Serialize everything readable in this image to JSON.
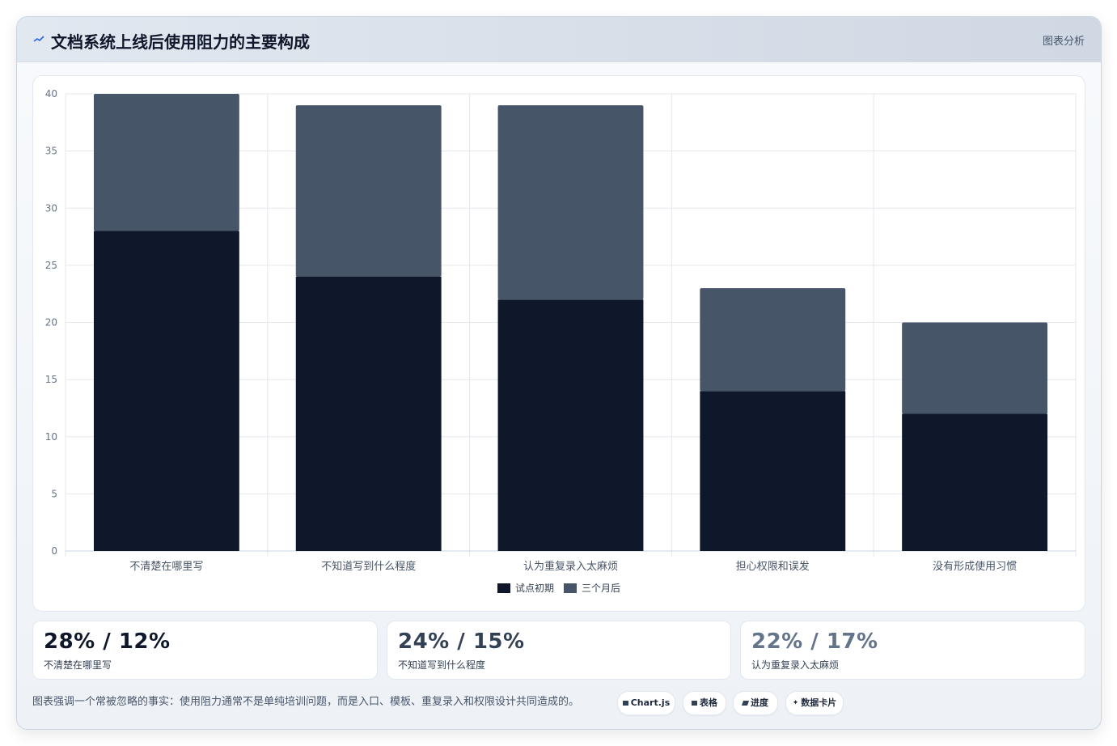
{
  "header": {
    "title": "文档系统上线后使用阻力的主要构成",
    "tag": "图表分析",
    "icon": "trend-line-icon"
  },
  "chart_data": {
    "type": "bar",
    "stacked": true,
    "categories": [
      "不清楚在哪里写",
      "不知道写到什么程度",
      "认为重复录入太麻烦",
      "担心权限和误发",
      "没有形成使用习惯"
    ],
    "series": [
      {
        "name": "试点初期",
        "values": [
          28,
          24,
          22,
          14,
          12
        ],
        "color": "#0f172a"
      },
      {
        "name": "三个月后",
        "values": [
          12,
          15,
          17,
          9,
          8
        ],
        "color": "#475569"
      }
    ],
    "ylim": [
      0,
      40
    ],
    "yticks": [
      0,
      5,
      10,
      15,
      20,
      25,
      30,
      35,
      40
    ],
    "grid": true,
    "legend": "bottom"
  },
  "stats": [
    {
      "value": "28% / 12%",
      "label": "不清楚在哪里写",
      "color": "#0f172a"
    },
    {
      "value": "24% / 15%",
      "label": "不知道写到什么程度",
      "color": "#334155"
    },
    {
      "value": "22% / 17%",
      "label": "认为重复录入太麻烦",
      "color": "#64748b"
    }
  ],
  "footnote": "图表强调一个常被忽略的事实：使用阻力通常不是单纯培训问题，而是入口、模板、重复录入和权限设计共同造成的。",
  "chips": [
    {
      "label": "Chart.js",
      "icon": "chart-icon"
    },
    {
      "label": "表格",
      "icon": "table-icon"
    },
    {
      "label": "进度",
      "icon": "progress-icon"
    },
    {
      "label": "数据卡片",
      "icon": "sparkle-icon"
    }
  ]
}
